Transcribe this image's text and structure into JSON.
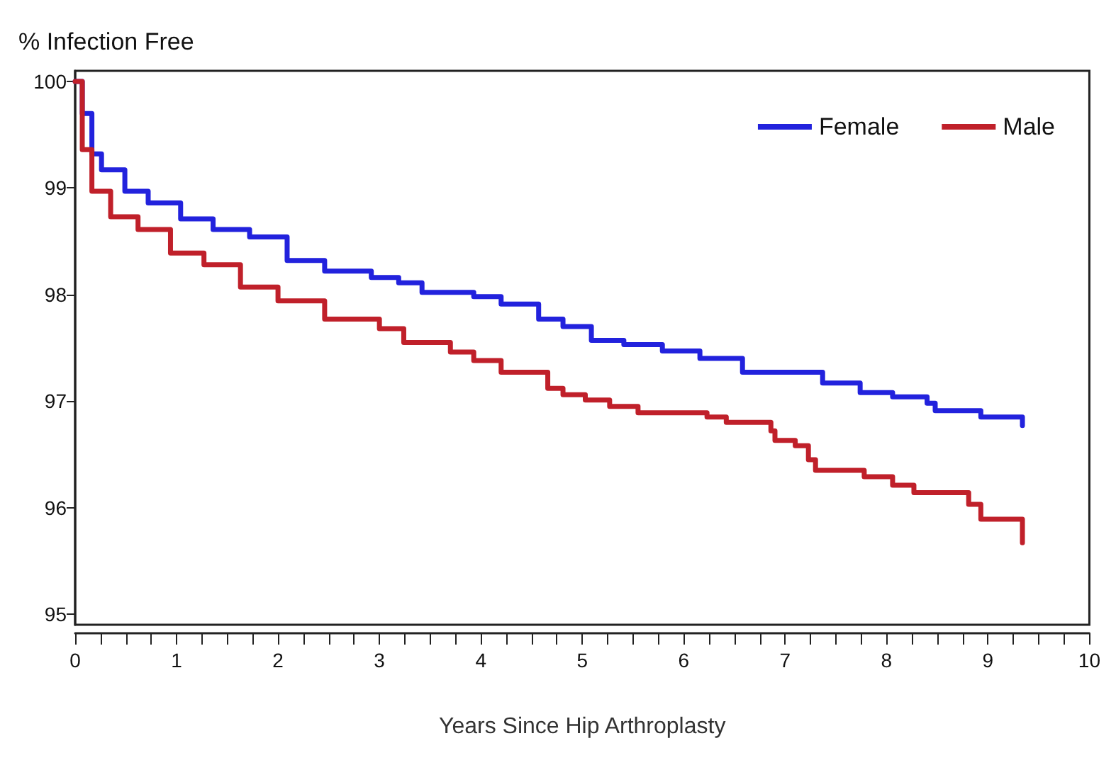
{
  "chart_data": {
    "type": "step",
    "ylabel": "% Infection Free",
    "xlabel": "Years Since Hip Arthroplasty",
    "xlim": [
      0,
      10
    ],
    "xticks": [
      0,
      1,
      2,
      3,
      4,
      5,
      6,
      7,
      8,
      9,
      10
    ],
    "ylim": [
      94.9,
      100.1
    ],
    "yticks": [
      95,
      96,
      97,
      98,
      99,
      100
    ],
    "grid": false,
    "legend": "top right",
    "line_style": "solid",
    "marker": "none",
    "series": [
      {
        "name": "Female",
        "color": "#2222dd",
        "x": [
          0,
          0.07,
          0.165,
          0.26,
          0.49,
          0.72,
          1.04,
          1.36,
          1.72,
          2.09,
          2.46,
          2.92,
          3.19,
          3.42,
          3.93,
          4.2,
          4.57,
          4.81,
          5.09,
          5.41,
          5.79,
          6.16,
          6.58,
          7.37,
          7.74,
          8.06,
          8.4,
          8.48,
          8.93,
          9.34
        ],
        "values": [
          100,
          99.7,
          99.32,
          99.17,
          98.97,
          98.86,
          98.71,
          98.61,
          98.54,
          98.32,
          98.22,
          98.16,
          98.11,
          98.02,
          97.98,
          97.91,
          97.77,
          97.7,
          97.57,
          97.53,
          97.47,
          97.4,
          97.27,
          97.17,
          97.08,
          97.04,
          96.98,
          96.91,
          96.85,
          96.77
        ]
      },
      {
        "name": "Male",
        "color": "#c0202a",
        "x": [
          0,
          0.07,
          0.165,
          0.35,
          0.62,
          0.94,
          1.27,
          1.63,
          2.0,
          2.46,
          3.0,
          3.24,
          3.7,
          3.93,
          4.2,
          4.66,
          4.81,
          5.03,
          5.27,
          5.55,
          6.23,
          6.42,
          6.86,
          6.9,
          7.1,
          7.23,
          7.3,
          7.78,
          8.06,
          8.27,
          8.81,
          8.93,
          9.34
        ],
        "values": [
          100,
          99.36,
          98.97,
          98.73,
          98.61,
          98.39,
          98.28,
          98.07,
          97.94,
          97.77,
          97.68,
          97.55,
          97.46,
          97.38,
          97.27,
          97.12,
          97.06,
          97.01,
          96.95,
          96.89,
          96.85,
          96.8,
          96.72,
          96.63,
          96.58,
          96.45,
          96.35,
          96.29,
          96.21,
          96.14,
          96.03,
          95.89,
          95.67
        ]
      }
    ]
  }
}
